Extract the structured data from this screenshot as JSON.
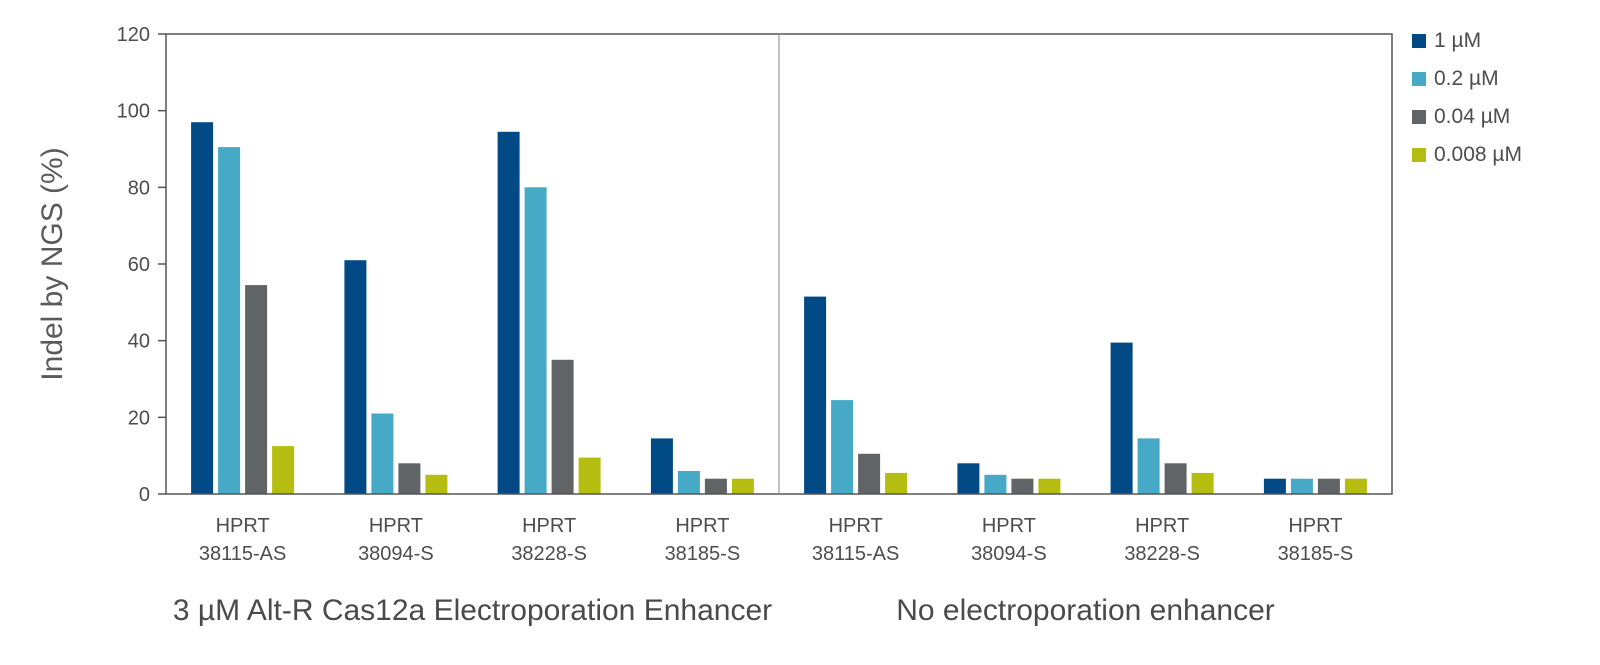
{
  "chart_data": {
    "type": "bar",
    "title": "",
    "xlabel": "",
    "ylabel": "Indel by NGS (%)",
    "ylim": [
      0,
      120
    ],
    "yticks": [
      "0",
      "20",
      "40",
      "60",
      "80",
      "100",
      "120"
    ],
    "grid": false,
    "legend_position": "top-right",
    "categories": [
      [
        "HPRT",
        "38115-AS"
      ],
      [
        "HPRT",
        "38094-S"
      ],
      [
        "HPRT",
        "38228-S"
      ],
      [
        "HPRT",
        "38185-S"
      ],
      [
        "HPRT",
        "38115-AS"
      ],
      [
        "HPRT",
        "38094-S"
      ],
      [
        "HPRT",
        "38228-S"
      ],
      [
        "HPRT",
        "38185-S"
      ]
    ],
    "groups": [
      {
        "label": "3 µM Alt-R Cas12a Electroporation Enhancer",
        "category_indices": [
          0,
          1,
          2,
          3
        ]
      },
      {
        "label": "No electroporation enhancer",
        "category_indices": [
          4,
          5,
          6,
          7
        ]
      }
    ],
    "series": [
      {
        "name": "1 µM",
        "color": "#014a86",
        "values": [
          97,
          61,
          94.5,
          14.5,
          51.5,
          8,
          39.5,
          4
        ]
      },
      {
        "name": "0.2 µM",
        "color": "#46a9c6",
        "values": [
          90.5,
          21,
          80,
          6,
          24.5,
          5,
          14.5,
          4
        ]
      },
      {
        "name": "0.04 µM",
        "color": "#616466",
        "values": [
          54.5,
          8,
          35,
          4,
          10.5,
          4,
          8,
          4
        ]
      },
      {
        "name": "0.008 µM",
        "color": "#b5bd11",
        "values": [
          12.5,
          5,
          9.5,
          4,
          5.5,
          4,
          5.5,
          4
        ]
      }
    ]
  }
}
